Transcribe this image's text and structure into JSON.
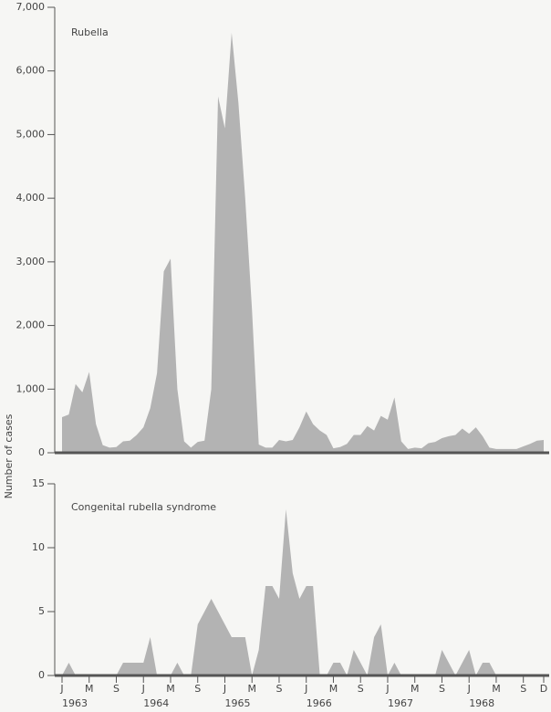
{
  "chart_data": {
    "type": "area",
    "y_label": "Number of cases",
    "color": "#b3b3b3",
    "categories": [
      "J",
      null,
      null,
      null,
      "M",
      null,
      null,
      null,
      "S",
      null,
      null,
      null,
      "J",
      null,
      null,
      null,
      "M",
      null,
      null,
      null,
      "S",
      null,
      null,
      null,
      "J",
      null,
      null,
      null,
      "M",
      null,
      null,
      null,
      "S",
      null,
      null,
      null,
      "J",
      null,
      null,
      null,
      "M",
      null,
      null,
      null,
      "S",
      null,
      null,
      null,
      "J",
      null,
      null,
      null,
      "M",
      null,
      null,
      null,
      "S",
      null,
      null,
      null,
      "J",
      null,
      null,
      null,
      "M",
      null,
      null,
      null,
      "S",
      null,
      null,
      "D"
    ],
    "years": [
      "1963",
      "1964",
      "1965",
      "1966",
      "1967",
      "1968"
    ],
    "panels": [
      {
        "name": "Rubella",
        "ylim": [
          0,
          7000
        ],
        "yticks": [
          0,
          {
            "value": 1000,
            "label": "1,000"
          },
          {
            "value": 2000,
            "label": "2,000"
          },
          {
            "value": 3000,
            "label": "3,000"
          },
          {
            "value": 4000,
            "label": "4,000"
          },
          {
            "value": 5000,
            "label": "5,000"
          },
          {
            "value": 6000,
            "label": "6,000"
          },
          {
            "value": 7000,
            "label": "7,000"
          }
        ],
        "values": [
          560,
          600,
          1080,
          950,
          1270,
          450,
          120,
          80,
          90,
          180,
          190,
          280,
          400,
          700,
          1250,
          2850,
          3050,
          1000,
          180,
          80,
          170,
          190,
          1000,
          5600,
          5100,
          6600,
          5500,
          4000,
          2250,
          130,
          80,
          80,
          200,
          180,
          200,
          400,
          650,
          450,
          350,
          280,
          70,
          90,
          140,
          280,
          280,
          420,
          350,
          580,
          520,
          870,
          180,
          60,
          80,
          70,
          150,
          170,
          230,
          260,
          280,
          380,
          300,
          400,
          260,
          80,
          60,
          60,
          60,
          60,
          100,
          140,
          190,
          200
        ]
      },
      {
        "name": "Congenital rubella syndrome",
        "ylim": [
          0,
          15
        ],
        "yticks": [
          0,
          5,
          10,
          15
        ],
        "values": [
          0,
          1,
          0,
          0,
          0,
          0,
          0,
          0,
          0,
          1,
          1,
          1,
          1,
          3,
          0,
          0,
          0,
          1,
          0,
          0,
          4,
          5,
          6,
          5,
          4,
          3,
          3,
          3,
          0,
          2,
          7,
          7,
          6,
          13,
          8,
          6,
          7,
          7,
          0,
          0,
          1,
          1,
          0,
          2,
          1,
          0,
          3,
          4,
          0,
          1,
          0,
          0,
          0,
          0,
          0,
          0,
          2,
          1,
          0,
          1,
          2,
          0,
          1,
          1,
          0,
          0,
          0,
          0,
          0,
          0,
          0,
          0
        ]
      }
    ]
  }
}
